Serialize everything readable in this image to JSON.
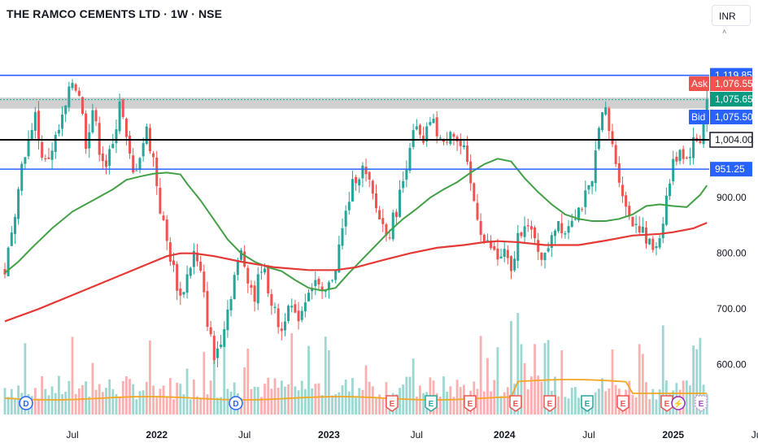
{
  "header": {
    "title": "THE RAMCO CEMENTS LTD · 1W · NSE",
    "currency": "INR"
  },
  "colors": {
    "up": "#26a69a",
    "down": "#ef5350",
    "ma_short": "#43a047",
    "ma_long": "#e53935",
    "vol_ma": "#f5a623",
    "h_blue": "#2962ff",
    "h_black": "#000000",
    "zone": "#c8c8c8"
  },
  "chart_data": {
    "type": "candlestick",
    "symbol": "THE RAMCO CEMENTS LTD",
    "interval": "1W",
    "exchange": "NSE",
    "y_ticks": [
      "900.00",
      "800.00",
      "700.00",
      "600.00"
    ],
    "x_ticks": [
      {
        "label": "Jul",
        "bold": false
      },
      {
        "label": "2022",
        "bold": true
      },
      {
        "label": "Jul",
        "bold": false
      },
      {
        "label": "2023",
        "bold": true
      },
      {
        "label": "Jul",
        "bold": false
      },
      {
        "label": "2024",
        "bold": true
      },
      {
        "label": "Jul",
        "bold": false
      },
      {
        "label": "2025",
        "bold": true
      },
      {
        "label": "Jul",
        "bold": false
      }
    ],
    "horizontal_lines": [
      {
        "price": 1119.85,
        "label": "1,119.85",
        "color": "blue"
      },
      {
        "price": 1004.0,
        "label": "1,004.00",
        "color": "black"
      },
      {
        "price": 951.25,
        "label": "951.25",
        "color": "blue"
      }
    ],
    "zone": {
      "top": 1080,
      "bottom": 1060
    },
    "price_labels": [
      {
        "label": "1,076.55",
        "prefix": "Ask",
        "price": 1076.55,
        "color": "red"
      },
      {
        "label": "1,075.65",
        "prefix": "",
        "price": 1075.65,
        "color": "green"
      },
      {
        "label": "1,075.50",
        "prefix": "Bid",
        "price": 1075.5,
        "color": "blue"
      }
    ],
    "ma_short_path": [
      [
        0,
        765
      ],
      [
        4,
        785
      ],
      [
        8,
        810
      ],
      [
        14,
        845
      ],
      [
        20,
        875
      ],
      [
        26,
        895
      ],
      [
        32,
        915
      ],
      [
        36,
        932
      ],
      [
        40,
        938
      ],
      [
        44,
        943
      ],
      [
        48,
        945
      ],
      [
        52,
        942
      ],
      [
        54,
        925
      ],
      [
        58,
        895
      ],
      [
        62,
        860
      ],
      [
        66,
        825
      ],
      [
        70,
        800
      ],
      [
        74,
        785
      ],
      [
        78,
        775
      ],
      [
        82,
        768
      ],
      [
        86,
        752
      ],
      [
        90,
        738
      ],
      [
        94,
        733
      ],
      [
        98,
        738
      ],
      [
        102,
        765
      ],
      [
        106,
        790
      ],
      [
        110,
        815
      ],
      [
        114,
        840
      ],
      [
        118,
        862
      ],
      [
        122,
        880
      ],
      [
        126,
        900
      ],
      [
        130,
        915
      ],
      [
        134,
        928
      ],
      [
        138,
        945
      ],
      [
        142,
        960
      ],
      [
        146,
        970
      ],
      [
        150,
        965
      ],
      [
        154,
        935
      ],
      [
        158,
        910
      ],
      [
        162,
        888
      ],
      [
        166,
        870
      ],
      [
        170,
        862
      ],
      [
        174,
        858
      ],
      [
        178,
        858
      ],
      [
        182,
        862
      ],
      [
        186,
        870
      ],
      [
        190,
        885
      ],
      [
        194,
        888
      ],
      [
        198,
        885
      ],
      [
        202,
        883
      ],
      [
        206,
        905
      ],
      [
        208,
        922
      ]
    ],
    "ma_long_path": [
      [
        0,
        678
      ],
      [
        10,
        700
      ],
      [
        20,
        725
      ],
      [
        30,
        750
      ],
      [
        40,
        775
      ],
      [
        48,
        795
      ],
      [
        52,
        800
      ],
      [
        56,
        800
      ],
      [
        62,
        795
      ],
      [
        70,
        785
      ],
      [
        80,
        775
      ],
      [
        90,
        770
      ],
      [
        98,
        770
      ],
      [
        104,
        775
      ],
      [
        112,
        788
      ],
      [
        120,
        800
      ],
      [
        128,
        810
      ],
      [
        136,
        815
      ],
      [
        142,
        820
      ],
      [
        146,
        822
      ],
      [
        152,
        820
      ],
      [
        160,
        815
      ],
      [
        170,
        815
      ],
      [
        178,
        823
      ],
      [
        186,
        832
      ],
      [
        194,
        835
      ],
      [
        198,
        838
      ],
      [
        204,
        845
      ],
      [
        208,
        855
      ]
    ],
    "price_path": [
      [
        0,
        770
      ],
      [
        2,
        830
      ],
      [
        4,
        930
      ],
      [
        6,
        985
      ],
      [
        8,
        1010
      ],
      [
        9,
        1065
      ],
      [
        10,
        1000
      ],
      [
        12,
        960
      ],
      [
        14,
        990
      ],
      [
        16,
        1020
      ],
      [
        18,
        1060
      ],
      [
        20,
        1110
      ],
      [
        22,
        1090
      ],
      [
        24,
        1000
      ],
      [
        26,
        1060
      ],
      [
        28,
        990
      ],
      [
        30,
        960
      ],
      [
        32,
        990
      ],
      [
        34,
        1080
      ],
      [
        36,
        1000
      ],
      [
        38,
        940
      ],
      [
        40,
        980
      ],
      [
        42,
        1020
      ],
      [
        44,
        970
      ],
      [
        46,
        880
      ],
      [
        48,
        820
      ],
      [
        50,
        770
      ],
      [
        52,
        720
      ],
      [
        54,
        760
      ],
      [
        56,
        800
      ],
      [
        58,
        760
      ],
      [
        60,
        680
      ],
      [
        62,
        610
      ],
      [
        64,
        650
      ],
      [
        66,
        700
      ],
      [
        68,
        760
      ],
      [
        70,
        800
      ],
      [
        72,
        760
      ],
      [
        74,
        720
      ],
      [
        76,
        780
      ],
      [
        78,
        740
      ],
      [
        80,
        690
      ],
      [
        82,
        660
      ],
      [
        84,
        720
      ],
      [
        86,
        680
      ],
      [
        88,
        700
      ],
      [
        90,
        740
      ],
      [
        92,
        750
      ],
      [
        94,
        720
      ],
      [
        96,
        740
      ],
      [
        98,
        780
      ],
      [
        100,
        840
      ],
      [
        102,
        900
      ],
      [
        104,
        940
      ],
      [
        106,
        950
      ],
      [
        108,
        920
      ],
      [
        110,
        880
      ],
      [
        112,
        850
      ],
      [
        114,
        840
      ],
      [
        116,
        880
      ],
      [
        118,
        930
      ],
      [
        120,
        1000
      ],
      [
        122,
        1020
      ],
      [
        124,
        990
      ],
      [
        126,
        1040
      ],
      [
        128,
        1020
      ],
      [
        130,
        990
      ],
      [
        132,
        1030
      ],
      [
        134,
        1000
      ],
      [
        136,
        980
      ],
      [
        138,
        920
      ],
      [
        140,
        870
      ],
      [
        142,
        820
      ],
      [
        144,
        810
      ],
      [
        146,
        790
      ],
      [
        148,
        800
      ],
      [
        150,
        760
      ],
      [
        152,
        830
      ],
      [
        154,
        860
      ],
      [
        156,
        830
      ],
      [
        158,
        810
      ],
      [
        160,
        790
      ],
      [
        162,
        840
      ],
      [
        164,
        860
      ],
      [
        166,
        840
      ],
      [
        168,
        870
      ],
      [
        170,
        880
      ],
      [
        172,
        900
      ],
      [
        174,
        920
      ],
      [
        176,
        1040
      ],
      [
        178,
        1050
      ],
      [
        180,
        990
      ],
      [
        182,
        940
      ],
      [
        184,
        880
      ],
      [
        186,
        860
      ],
      [
        188,
        850
      ],
      [
        190,
        820
      ],
      [
        192,
        810
      ],
      [
        194,
        830
      ],
      [
        196,
        900
      ],
      [
        198,
        960
      ],
      [
        200,
        990
      ],
      [
        202,
        970
      ],
      [
        204,
        1000
      ],
      [
        206,
        1005
      ],
      [
        208,
        1075
      ]
    ],
    "events": [
      {
        "label": "D",
        "type": "dividend"
      },
      {
        "label": "D",
        "type": "dividend"
      },
      {
        "label": "E",
        "type": "earnings"
      },
      {
        "label": "E",
        "type": "earnings-up"
      },
      {
        "label": "E",
        "type": "earnings"
      },
      {
        "label": "E",
        "type": "earnings"
      },
      {
        "label": "E",
        "type": "earnings"
      },
      {
        "label": "E",
        "type": "earnings-up"
      },
      {
        "label": "E",
        "type": "earnings"
      },
      {
        "label": "E",
        "type": "earnings"
      },
      {
        "label": "⚡",
        "type": "split"
      },
      {
        "label": "E",
        "type": "future"
      }
    ]
  }
}
